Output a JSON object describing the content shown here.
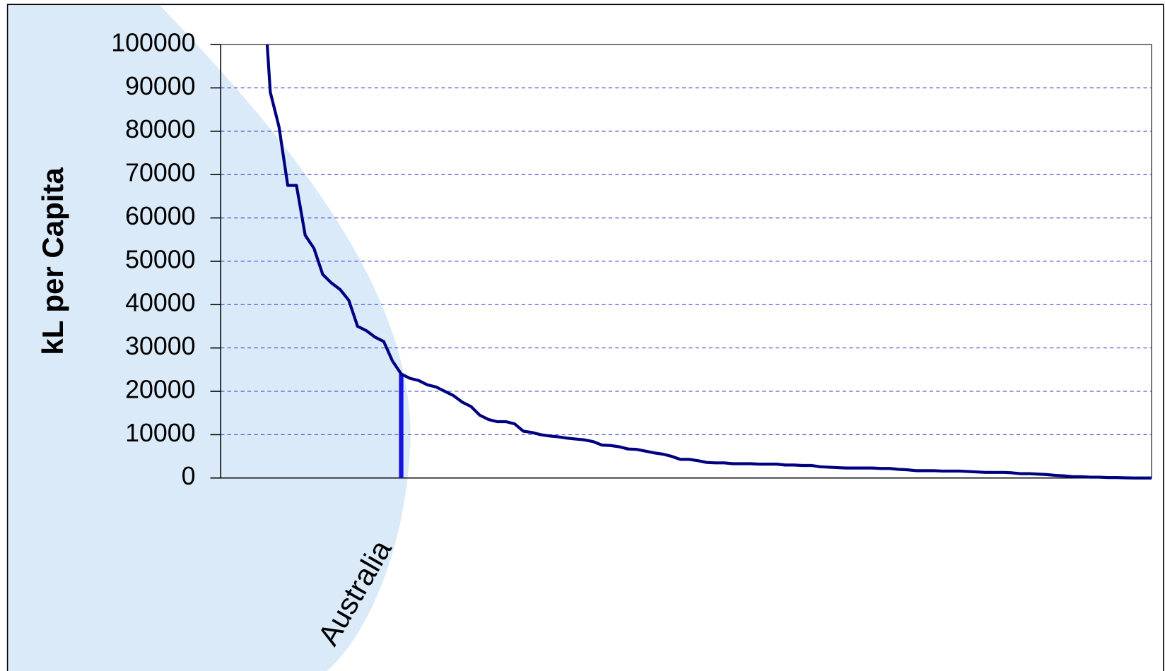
{
  "chart_data": {
    "type": "line",
    "ylabel": "kL per Capita",
    "categories": [
      null,
      null,
      null,
      null,
      null,
      null,
      null,
      null,
      null,
      null,
      null,
      null,
      null,
      null,
      null,
      null,
      "Australia",
      null,
      null,
      null,
      null,
      null,
      null,
      null,
      null,
      null,
      null,
      null,
      null,
      null,
      null,
      null,
      null,
      null,
      null,
      null,
      null,
      null,
      null,
      null,
      null,
      null,
      null,
      null,
      null,
      null,
      null,
      null,
      null,
      null,
      null,
      null,
      null,
      null,
      null,
      null,
      null,
      null,
      null,
      null,
      null,
      null,
      null,
      null,
      null,
      null,
      null,
      null,
      null,
      null,
      null,
      null,
      null,
      null,
      null,
      null,
      null,
      null,
      null,
      null,
      null,
      null,
      null,
      null,
      null,
      null,
      null,
      null,
      null,
      null,
      null,
      null,
      null,
      null,
      null,
      null,
      null,
      null,
      null,
      null,
      null,
      null,
      null
    ],
    "series": [
      {
        "color": "#000080",
        "values": [
          120000,
          89000,
          81000,
          67500,
          67500,
          56000,
          53000,
          47000,
          45000,
          43500,
          41000,
          35000,
          34000,
          32500,
          31500,
          27000,
          24000,
          23000,
          22500,
          21500,
          21000,
          20000,
          19000,
          17500,
          16500,
          14500,
          13500,
          13000,
          13000,
          12500,
          10800,
          10500,
          10000,
          9700,
          9500,
          9200,
          9000,
          8800,
          8400,
          7600,
          7500,
          7200,
          6700,
          6600,
          6200,
          5800,
          5500,
          5000,
          4300,
          4300,
          4000,
          3600,
          3500,
          3500,
          3300,
          3300,
          3300,
          3200,
          3200,
          3200,
          3000,
          3000,
          2900,
          2900,
          2600,
          2500,
          2400,
          2300,
          2300,
          2300,
          2300,
          2200,
          2200,
          2000,
          1900,
          1700,
          1700,
          1700,
          1600,
          1600,
          1600,
          1500,
          1400,
          1300,
          1300,
          1300,
          1200,
          1000,
          1000,
          900,
          800,
          600,
          500,
          300,
          300,
          200,
          200,
          100,
          100,
          50,
          0,
          0,
          0
        ]
      }
    ],
    "highlight_color": "#1515e0",
    "ylim": [
      0,
      100000
    ],
    "yticks": [
      0,
      10000,
      20000,
      30000,
      40000,
      50000,
      60000,
      70000,
      80000,
      90000,
      100000
    ],
    "grid": true
  }
}
